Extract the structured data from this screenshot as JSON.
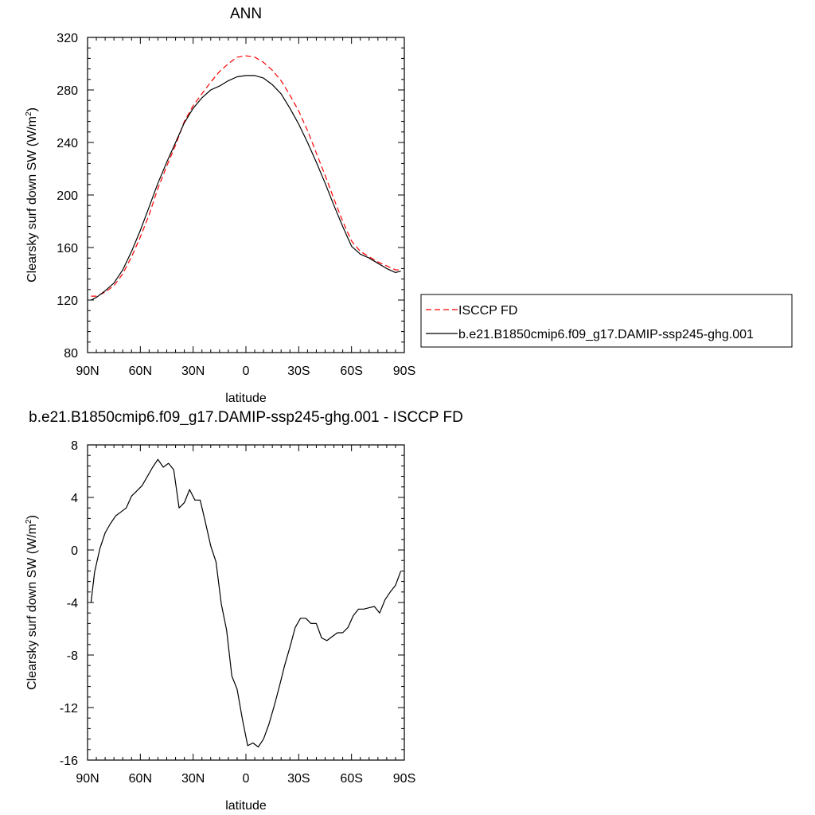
{
  "colors": {
    "obs": "#ff0000",
    "model": "#000000",
    "axis": "#000000"
  },
  "chart_data": [
    {
      "type": "line",
      "title": "ANN",
      "xlabel": "latitude",
      "ylabel_main": "Clearsky surf down SW (W/m",
      "ylabel_sup": "2",
      "ylabel_close": ")",
      "xlim": [
        -90,
        90
      ],
      "ylim": [
        80,
        320
      ],
      "x_ticks": [
        -90,
        -60,
        -30,
        0,
        30,
        60,
        90
      ],
      "x_tick_labels": [
        "90N",
        "60N",
        "30N",
        "0",
        "30S",
        "60S",
        "90S"
      ],
      "y_ticks": [
        80,
        120,
        160,
        200,
        240,
        280,
        320
      ],
      "y_tick_labels": [
        "80",
        "120",
        "160",
        "200",
        "240",
        "280",
        "320"
      ],
      "legend": {
        "placement": "right",
        "entries": [
          "ISCCP FD",
          "b.e21.B1850cmip6.f09_g17.DAMIP-ssp245-ghg.001"
        ]
      },
      "series": [
        {
          "name": "ISCCP FD",
          "style": "dashed",
          "x": [
            -88,
            -85,
            -80,
            -75,
            -70,
            -65,
            -60,
            -55,
            -50,
            -45,
            -40,
            -35,
            -30,
            -25,
            -20,
            -15,
            -10,
            -5,
            0,
            5,
            10,
            15,
            20,
            25,
            30,
            35,
            40,
            45,
            50,
            55,
            60,
            65,
            70,
            75,
            80,
            85,
            88
          ],
          "values": [
            123,
            123,
            126,
            131,
            140,
            153,
            168,
            185,
            205,
            222,
            238,
            256,
            268,
            277,
            286,
            294,
            300,
            305,
            306,
            305,
            301,
            295,
            287,
            276,
            264,
            249,
            232,
            215,
            197,
            180,
            165,
            157,
            153,
            149,
            146,
            143,
            143
          ]
        },
        {
          "name": "b.e21.B1850cmip6.f09_g17.DAMIP-ssp245-ghg.001",
          "style": "solid",
          "x": [
            -88,
            -85,
            -80,
            -75,
            -70,
            -65,
            -60,
            -55,
            -50,
            -45,
            -40,
            -35,
            -30,
            -25,
            -20,
            -15,
            -10,
            -5,
            0,
            5,
            10,
            15,
            20,
            25,
            30,
            35,
            40,
            45,
            50,
            55,
            60,
            65,
            70,
            75,
            80,
            85,
            88
          ],
          "values": [
            120,
            122,
            127,
            133,
            143,
            157,
            173,
            191,
            209,
            225,
            240,
            255,
            266,
            274,
            280,
            283,
            287,
            290,
            291,
            291,
            289,
            284,
            277,
            266,
            254,
            240,
            225,
            209,
            192,
            176,
            161,
            155,
            152,
            148,
            144,
            141,
            142
          ]
        }
      ]
    },
    {
      "type": "line",
      "title": "b.e21.B1850cmip6.f09_g17.DAMIP-ssp245-ghg.001 - ISCCP FD",
      "xlabel": "latitude",
      "ylabel_main": "Clearsky surf down SW (W/m",
      "ylabel_sup": "2",
      "ylabel_close": ")",
      "xlim": [
        -90,
        90
      ],
      "ylim": [
        -16,
        8
      ],
      "x_ticks": [
        -90,
        -60,
        -30,
        0,
        30,
        60,
        90
      ],
      "x_tick_labels": [
        "90N",
        "60N",
        "30N",
        "0",
        "30S",
        "60S",
        "90S"
      ],
      "y_ticks": [
        -16,
        -12,
        -8,
        -4,
        0,
        4,
        8
      ],
      "y_tick_labels": [
        "-16",
        "-12",
        "-8",
        "-4",
        "0",
        "4",
        "8"
      ],
      "series": [
        {
          "name": "",
          "style": "solid",
          "x": [
            -88,
            -86,
            -83,
            -80,
            -77,
            -74,
            -71,
            -68,
            -65,
            -62,
            -59,
            -56,
            -53,
            -50,
            -47,
            -44,
            -41,
            -38,
            -35,
            -32,
            -29,
            -26,
            -23,
            -20,
            -17,
            -14,
            -11,
            -8,
            -5,
            -2,
            1,
            4,
            7,
            10,
            13,
            16,
            19,
            22,
            25,
            28,
            31,
            34,
            37,
            40,
            43,
            46,
            49,
            52,
            55,
            58,
            61,
            64,
            67,
            70,
            73,
            76,
            79,
            82,
            85,
            88
          ],
          "values": [
            -4.0,
            -1.7,
            0.1,
            1.3,
            2.0,
            2.6,
            2.9,
            3.2,
            4.1,
            4.5,
            4.9,
            5.6,
            6.3,
            6.9,
            6.3,
            6.6,
            6.1,
            3.2,
            3.6,
            4.6,
            3.8,
            3.8,
            2.1,
            0.3,
            -0.9,
            -4.1,
            -6.1,
            -9.6,
            -10.6,
            -12.9,
            -14.9,
            -14.7,
            -15.0,
            -14.4,
            -13.3,
            -11.9,
            -10.4,
            -8.8,
            -7.4,
            -5.9,
            -5.2,
            -5.2,
            -5.6,
            -5.6,
            -6.7,
            -6.9,
            -6.6,
            -6.3,
            -6.3,
            -5.9,
            -5.0,
            -4.5,
            -4.5,
            -4.4,
            -4.3,
            -4.8,
            -3.8,
            -3.2,
            -2.7,
            -1.6
          ]
        }
      ]
    }
  ]
}
